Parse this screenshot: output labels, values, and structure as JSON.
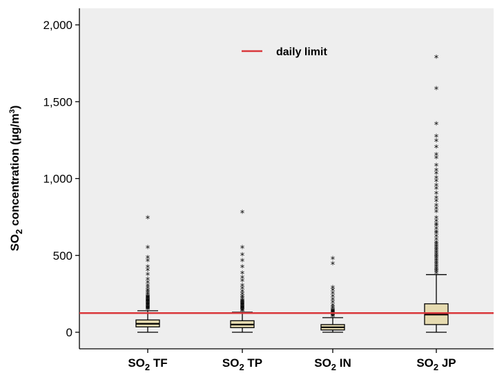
{
  "chart_data": {
    "type": "box",
    "ylabel": {
      "prefix": "SO",
      "sub": "2",
      "suffix": " concentration (µg/m",
      "sup": "3",
      "close": ")"
    },
    "ylim": [
      -110,
      2100
    ],
    "yticks": [
      0,
      500,
      1000,
      1500,
      2000
    ],
    "ytick_labels": [
      "0",
      "500",
      "1,000",
      "1,500",
      "2,000"
    ],
    "grid": false,
    "categories": [
      {
        "pre": "SO",
        "sub": "2",
        "post": " TF"
      },
      {
        "pre": "SO",
        "sub": "2",
        "post": " TP"
      },
      {
        "pre": "SO",
        "sub": "2",
        "post": " IN"
      },
      {
        "pre": "SO",
        "sub": "2",
        "post": " JP"
      }
    ],
    "boxes": [
      {
        "whisker_low": 0,
        "q1": 35,
        "median": 55,
        "q3": 80,
        "whisker_high": 140,
        "outliers": [
          145,
          150,
          155,
          160,
          165,
          170,
          175,
          180,
          185,
          190,
          195,
          200,
          205,
          210,
          215,
          220,
          225,
          230,
          240,
          250,
          260,
          270,
          285,
          300,
          320,
          340,
          370,
          400,
          420,
          460,
          480,
          545,
          740
        ]
      },
      {
        "whisker_low": 0,
        "q1": 30,
        "median": 50,
        "q3": 75,
        "whisker_high": 130,
        "outliers": [
          135,
          140,
          145,
          150,
          155,
          160,
          165,
          170,
          175,
          180,
          185,
          190,
          195,
          200,
          210,
          220,
          230,
          245,
          260,
          280,
          300,
          330,
          350,
          380,
          420,
          460,
          500,
          545,
          775
        ]
      },
      {
        "whisker_low": 0,
        "q1": 15,
        "median": 32,
        "q3": 50,
        "whisker_high": 95,
        "outliers": [
          100,
          105,
          110,
          115,
          120,
          125,
          130,
          135,
          140,
          150,
          160,
          170,
          190,
          210,
          230,
          250,
          270,
          285,
          440,
          475
        ]
      },
      {
        "whisker_low": 0,
        "q1": 50,
        "median": 115,
        "q3": 185,
        "whisker_high": 375,
        "outliers": [
          380,
          390,
          400,
          410,
          420,
          430,
          440,
          450,
          460,
          470,
          480,
          490,
          500,
          510,
          520,
          530,
          540,
          550,
          560,
          570,
          580,
          600,
          620,
          640,
          650,
          670,
          690,
          700,
          720,
          740,
          780,
          800,
          820,
          850,
          870,
          900,
          930,
          950,
          980,
          1000,
          1030,
          1050,
          1080,
          1130,
          1150,
          1200,
          1240,
          1270,
          1350,
          1580,
          1785
        ]
      }
    ],
    "reference_line": {
      "value": 125,
      "label": "daily limit",
      "color": "#d9373b"
    },
    "box_fill": "#e6dbb0",
    "plot_bg": "#eeeeee",
    "legend_position": "top-center"
  }
}
